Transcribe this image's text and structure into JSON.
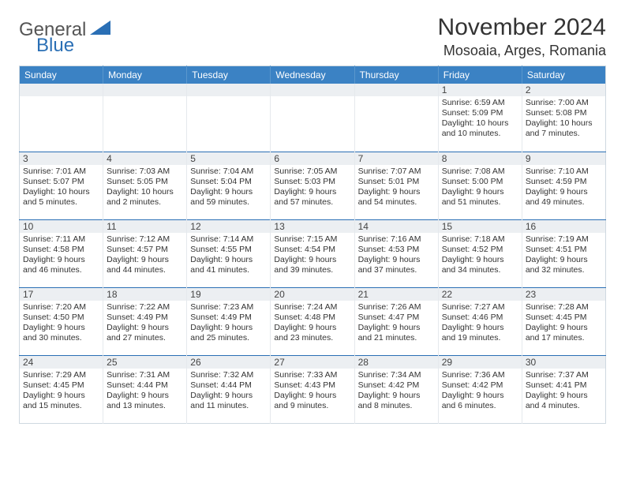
{
  "logo": {
    "word1": "General",
    "word2": "Blue",
    "shape_color": "#2a6fb5"
  },
  "title": "November 2024",
  "location": "Mosoaia, Arges, Romania",
  "colors": {
    "header_bg": "#3b82c4",
    "header_text": "#ffffff",
    "row_divider": "#2a6fb5",
    "daynum_bg": "#eceff2",
    "cell_border": "#e5e9ed",
    "body_text": "#333333"
  },
  "day_headers": [
    "Sunday",
    "Monday",
    "Tuesday",
    "Wednesday",
    "Thursday",
    "Friday",
    "Saturday"
  ],
  "weeks": [
    [
      null,
      null,
      null,
      null,
      null,
      {
        "n": "1",
        "sunrise": "6:59 AM",
        "sunset": "5:09 PM",
        "daylight": "10 hours and 10 minutes."
      },
      {
        "n": "2",
        "sunrise": "7:00 AM",
        "sunset": "5:08 PM",
        "daylight": "10 hours and 7 minutes."
      }
    ],
    [
      {
        "n": "3",
        "sunrise": "7:01 AM",
        "sunset": "5:07 PM",
        "daylight": "10 hours and 5 minutes."
      },
      {
        "n": "4",
        "sunrise": "7:03 AM",
        "sunset": "5:05 PM",
        "daylight": "10 hours and 2 minutes."
      },
      {
        "n": "5",
        "sunrise": "7:04 AM",
        "sunset": "5:04 PM",
        "daylight": "9 hours and 59 minutes."
      },
      {
        "n": "6",
        "sunrise": "7:05 AM",
        "sunset": "5:03 PM",
        "daylight": "9 hours and 57 minutes."
      },
      {
        "n": "7",
        "sunrise": "7:07 AM",
        "sunset": "5:01 PM",
        "daylight": "9 hours and 54 minutes."
      },
      {
        "n": "8",
        "sunrise": "7:08 AM",
        "sunset": "5:00 PM",
        "daylight": "9 hours and 51 minutes."
      },
      {
        "n": "9",
        "sunrise": "7:10 AM",
        "sunset": "4:59 PM",
        "daylight": "9 hours and 49 minutes."
      }
    ],
    [
      {
        "n": "10",
        "sunrise": "7:11 AM",
        "sunset": "4:58 PM",
        "daylight": "9 hours and 46 minutes."
      },
      {
        "n": "11",
        "sunrise": "7:12 AM",
        "sunset": "4:57 PM",
        "daylight": "9 hours and 44 minutes."
      },
      {
        "n": "12",
        "sunrise": "7:14 AM",
        "sunset": "4:55 PM",
        "daylight": "9 hours and 41 minutes."
      },
      {
        "n": "13",
        "sunrise": "7:15 AM",
        "sunset": "4:54 PM",
        "daylight": "9 hours and 39 minutes."
      },
      {
        "n": "14",
        "sunrise": "7:16 AM",
        "sunset": "4:53 PM",
        "daylight": "9 hours and 37 minutes."
      },
      {
        "n": "15",
        "sunrise": "7:18 AM",
        "sunset": "4:52 PM",
        "daylight": "9 hours and 34 minutes."
      },
      {
        "n": "16",
        "sunrise": "7:19 AM",
        "sunset": "4:51 PM",
        "daylight": "9 hours and 32 minutes."
      }
    ],
    [
      {
        "n": "17",
        "sunrise": "7:20 AM",
        "sunset": "4:50 PM",
        "daylight": "9 hours and 30 minutes."
      },
      {
        "n": "18",
        "sunrise": "7:22 AM",
        "sunset": "4:49 PM",
        "daylight": "9 hours and 27 minutes."
      },
      {
        "n": "19",
        "sunrise": "7:23 AM",
        "sunset": "4:49 PM",
        "daylight": "9 hours and 25 minutes."
      },
      {
        "n": "20",
        "sunrise": "7:24 AM",
        "sunset": "4:48 PM",
        "daylight": "9 hours and 23 minutes."
      },
      {
        "n": "21",
        "sunrise": "7:26 AM",
        "sunset": "4:47 PM",
        "daylight": "9 hours and 21 minutes."
      },
      {
        "n": "22",
        "sunrise": "7:27 AM",
        "sunset": "4:46 PM",
        "daylight": "9 hours and 19 minutes."
      },
      {
        "n": "23",
        "sunrise": "7:28 AM",
        "sunset": "4:45 PM",
        "daylight": "9 hours and 17 minutes."
      }
    ],
    [
      {
        "n": "24",
        "sunrise": "7:29 AM",
        "sunset": "4:45 PM",
        "daylight": "9 hours and 15 minutes."
      },
      {
        "n": "25",
        "sunrise": "7:31 AM",
        "sunset": "4:44 PM",
        "daylight": "9 hours and 13 minutes."
      },
      {
        "n": "26",
        "sunrise": "7:32 AM",
        "sunset": "4:44 PM",
        "daylight": "9 hours and 11 minutes."
      },
      {
        "n": "27",
        "sunrise": "7:33 AM",
        "sunset": "4:43 PM",
        "daylight": "9 hours and 9 minutes."
      },
      {
        "n": "28",
        "sunrise": "7:34 AM",
        "sunset": "4:42 PM",
        "daylight": "9 hours and 8 minutes."
      },
      {
        "n": "29",
        "sunrise": "7:36 AM",
        "sunset": "4:42 PM",
        "daylight": "9 hours and 6 minutes."
      },
      {
        "n": "30",
        "sunrise": "7:37 AM",
        "sunset": "4:41 PM",
        "daylight": "9 hours and 4 minutes."
      }
    ]
  ],
  "labels": {
    "sunrise": "Sunrise: ",
    "sunset": "Sunset: ",
    "daylight": "Daylight: "
  }
}
